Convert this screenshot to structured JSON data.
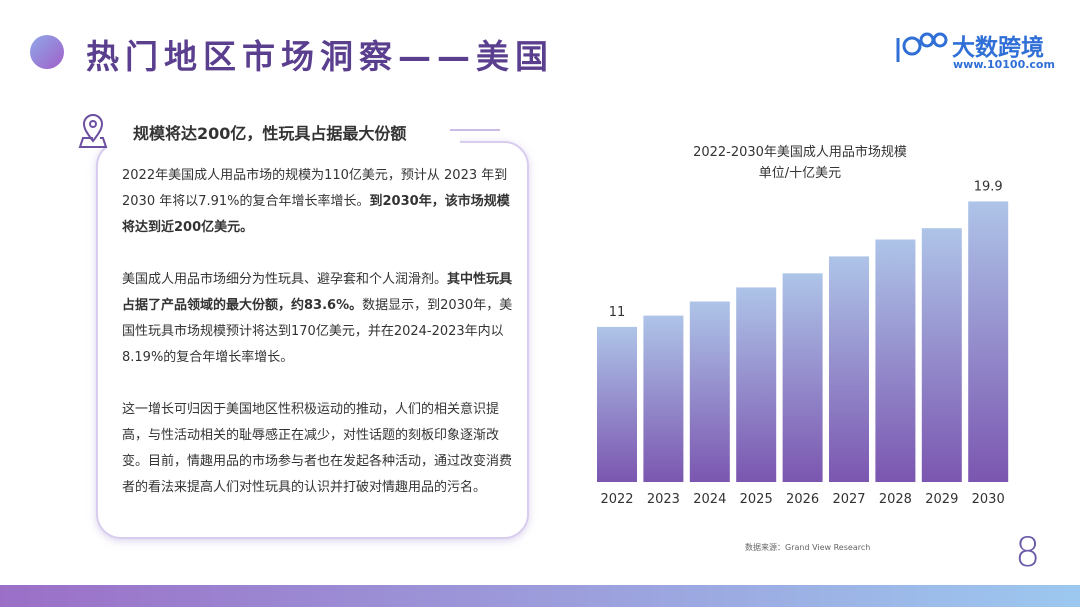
{
  "header": {
    "title": "热门地区市场洞察——美国",
    "brand": "大数跨境",
    "url": "www.10100.com"
  },
  "section": {
    "heading": "规模将达200亿，性玩具占据最大份额",
    "paragraphs": [
      [
        {
          "text": "2022年美国成人用品市场的规模为110亿美元，预计从 2023 年到 2030 年将以7.91%的复合年增长率增长。",
          "bold": false
        },
        {
          "text": "到2030年，该市场规模将达到近200亿美元。",
          "bold": true
        }
      ],
      [
        {
          "text": "美国成人用品市场细分为性玩具、避孕套和个人润滑剂。",
          "bold": false
        },
        {
          "text": "其中性玩具占据了产品领域的最大份额，约83.6%。",
          "bold": true
        },
        {
          "text": "数据显示，到2030年，美国性玩具市场规模预计将达到170亿美元，并在2024-2023年内以8.19%的复合年增长率增长。",
          "bold": false
        }
      ],
      [
        {
          "text": "这一增长可归因于美国地区性积极运动的推动，人们的相关意识提高，与性活动相关的耻辱感正在减少，对性话题的刻板印象逐渐改变。目前，情趣用品的市场参与者也在发起各种活动，通过改变消费者的看法来提高人们对性玩具的认识并打破对情趣用品的污名。",
          "bold": false
        }
      ]
    ]
  },
  "chart_data": {
    "type": "bar",
    "title": "2022-2030年美国成人用品市场规模",
    "subtitle": "单位/十亿美元",
    "categories": [
      "2022",
      "2023",
      "2024",
      "2025",
      "2026",
      "2027",
      "2028",
      "2029",
      "2030"
    ],
    "values": [
      11,
      11.8,
      12.8,
      13.8,
      14.8,
      16.0,
      17.2,
      18.0,
      19.9
    ],
    "color_top": "#aec4e8",
    "color_bottom": "#7b56b0"
  },
  "footer": {
    "source": "数据来源：Grand View Research",
    "page": "8"
  }
}
